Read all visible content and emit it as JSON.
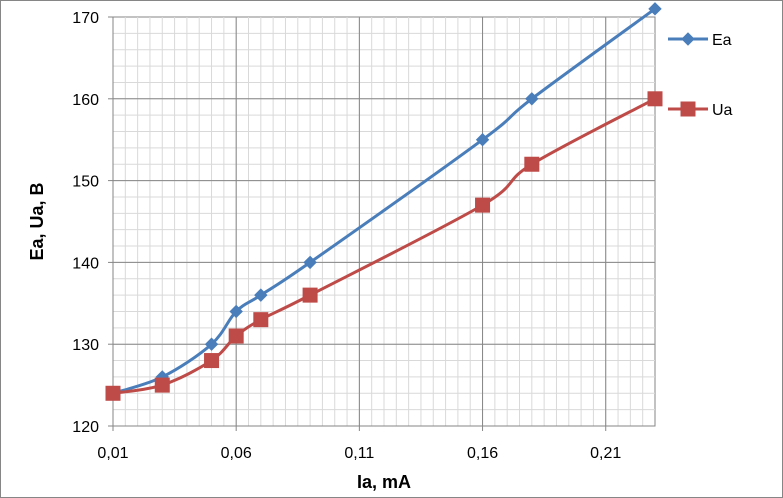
{
  "chart_data": {
    "type": "line",
    "title": "",
    "xlabel": "Ia, mA",
    "ylabel": "Ea, Ua, В",
    "xlim": [
      0.01,
      0.23
    ],
    "ylim": [
      120,
      170
    ],
    "x_ticks": [
      0.01,
      0.06,
      0.11,
      0.16,
      0.21
    ],
    "x_tick_labels": [
      "0,01",
      "0,06",
      "0,11",
      "0,16",
      "0,21"
    ],
    "y_ticks": [
      120,
      130,
      140,
      150,
      160,
      170
    ],
    "y_tick_labels": [
      "120",
      "130",
      "140",
      "150",
      "160",
      "170"
    ],
    "grid": true,
    "legend_position": "right",
    "series": [
      {
        "name": "Ea",
        "color": "#4a7ebb",
        "marker": "diamond",
        "x": [
          0.01,
          0.03,
          0.05,
          0.06,
          0.07,
          0.09,
          0.16,
          0.18,
          0.23
        ],
        "y": [
          124,
          126,
          130,
          134,
          136,
          140,
          155,
          160,
          171
        ]
      },
      {
        "name": "Ua",
        "color": "#be4b48",
        "marker": "square",
        "x": [
          0.01,
          0.03,
          0.05,
          0.06,
          0.07,
          0.09,
          0.16,
          0.18,
          0.23
        ],
        "y": [
          124,
          125,
          128,
          131,
          133,
          136,
          147,
          152,
          160
        ]
      }
    ]
  }
}
